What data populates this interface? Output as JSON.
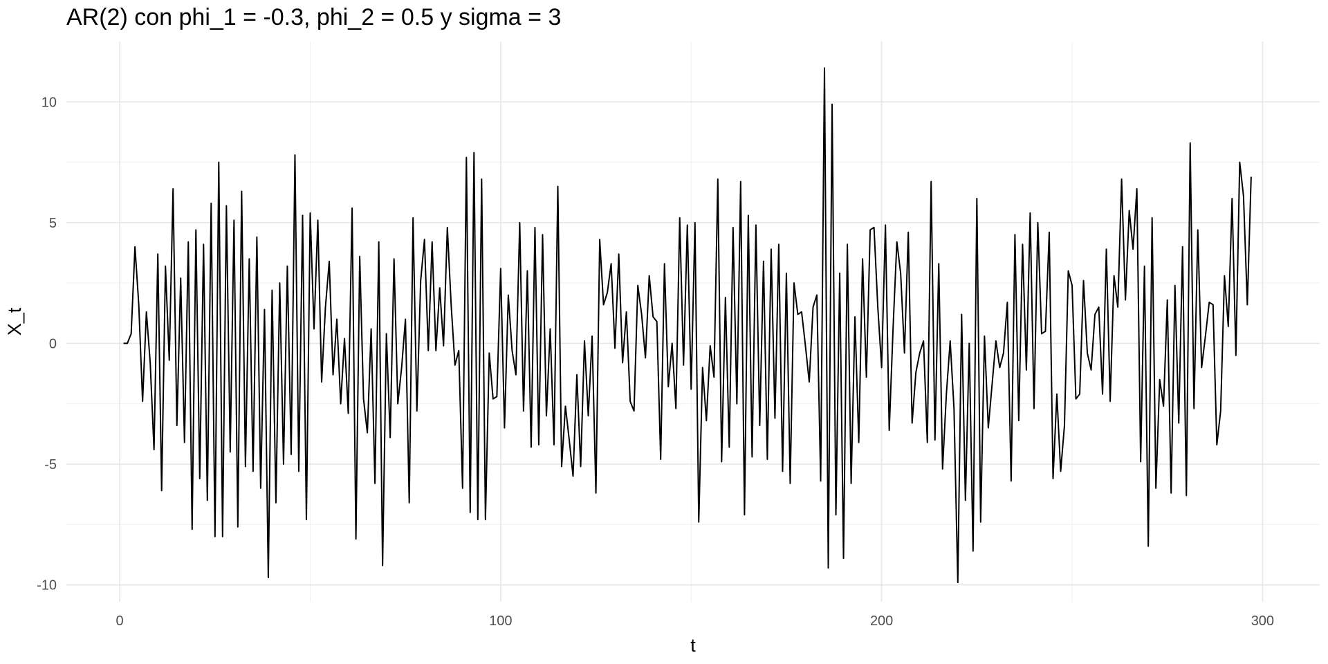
{
  "chart_data": {
    "type": "line",
    "title": "AR(2) con phi_1 = -0.3, phi_2 = 0.5 y sigma = 3",
    "xlabel": "t",
    "ylabel": "X_t",
    "xlim": [
      -14,
      315
    ],
    "ylim": [
      -10.7,
      12.5
    ],
    "x_ticks": [
      0,
      100,
      200,
      300
    ],
    "x_tick_labels": [
      "0",
      "100",
      "200",
      "300"
    ],
    "y_ticks": [
      -10,
      -5,
      0,
      5,
      10
    ],
    "y_tick_labels": [
      "-10",
      "-5",
      "0",
      "5",
      "10"
    ],
    "grid": true,
    "line_color": "#000000",
    "series": [
      {
        "x_start": 1,
        "values": [
          0,
          0,
          0.4,
          4,
          1.6,
          -2.4,
          1.3,
          -0.8,
          -4.4,
          3.7,
          -6.1,
          3.2,
          -0.7,
          6.4,
          -3.4,
          2.7,
          -4.1,
          4.2,
          -7.7,
          4.7,
          -5.6,
          4.1,
          -6.5,
          5.8,
          -8.0,
          7.5,
          -8.0,
          5.7,
          -4.5,
          5.1,
          -7.6,
          6.3,
          -5.1,
          3.5,
          -5.3,
          4.4,
          -6.0,
          1.4,
          -9.7,
          2.2,
          -6.6,
          2.5,
          -5.0,
          3.2,
          -4.6,
          7.8,
          -5.3,
          5.3,
          -7.3,
          5.4,
          0.6,
          5.1,
          -1.6,
          1.5,
          3.4,
          -1.3,
          1.0,
          -2.5,
          0.2,
          -2.9,
          5.6,
          -8.1,
          3.6,
          -2.3,
          -3.7,
          0.6,
          -5.8,
          4.2,
          -9.2,
          0.4,
          -3.9,
          3.5,
          -2.5,
          -1.0,
          1.0,
          -6.6,
          5.2,
          -2.8,
          2.6,
          4.3,
          -0.3,
          4.2,
          -0.3,
          2.3,
          -0.1,
          4.8,
          1.6,
          -0.9,
          -0.3,
          -6.0,
          7.7,
          -7.0,
          7.9,
          -7.3,
          6.8,
          -7.3,
          -0.4,
          -2.3,
          -2.2,
          3.1,
          -3.5,
          2.0,
          -0.3,
          -1.3,
          5.0,
          -2.8,
          3.0,
          -4.3,
          4.8,
          -4.2,
          4.5,
          -3.0,
          0.6,
          -4.2,
          6.5,
          -5.1,
          -2.6,
          -4.0,
          -5.5,
          -1.3,
          -5.1,
          0.1,
          -3.0,
          0.3,
          -6.2,
          4.3,
          1.6,
          2.1,
          3.3,
          -0.2,
          3.7,
          -0.8,
          1.3,
          -2.4,
          -2.8,
          2.4,
          1.2,
          -0.6,
          2.8,
          1.1,
          0.9,
          -4.8,
          3.3,
          -1.8,
          0.0,
          -2.7,
          5.2,
          -0.9,
          4.9,
          -1.9,
          5.0,
          -7.4,
          -1.0,
          -3.2,
          -0.1,
          -1.4,
          6.8,
          -4.9,
          1.9,
          -4.3,
          4.8,
          -2.5,
          6.7,
          -7.1,
          5.3,
          -4.7,
          4.9,
          -3.4,
          3.4,
          -4.8,
          3.9,
          -3.1,
          4.1,
          -5.3,
          2.9,
          -5.8,
          2.5,
          1.2,
          1.3,
          -0.1,
          -1.6,
          1.5,
          2.0,
          -5.7,
          11.4,
          -9.3,
          9.9,
          -7.1,
          2.9,
          -8.9,
          4.1,
          -5.8,
          1.1,
          -4.1,
          3.5,
          -1.4,
          4.7,
          4.8,
          1.5,
          -1.0,
          4.9,
          -3.6,
          0.6,
          4.2,
          2.9,
          -0.4,
          4.6,
          -3.3,
          -1.2,
          -0.4,
          0.1,
          -4.1,
          6.7,
          -4.0,
          3.3,
          -5.2,
          -2.1,
          0.1,
          -2.7,
          -9.9,
          1.2,
          -6.5,
          0.0,
          -8.6,
          6.0,
          -7.4,
          0.3,
          -3.5,
          -1.7,
          0.1,
          -1.0,
          -0.4,
          1.7,
          -5.7,
          4.5,
          -3.2,
          4.1,
          -1.1,
          5.4,
          -2.7,
          5.0,
          0.4,
          0.5,
          4.6,
          -5.6,
          -2.1,
          -5.3,
          -3.4,
          3.0,
          2.4,
          -2.3,
          -2.1,
          2.6,
          -0.4,
          -1.1,
          1.2,
          1.5,
          -2.1,
          3.9,
          -2.4,
          2.8,
          1.5,
          6.8,
          1.8,
          5.5,
          3.9,
          6.4,
          -4.9,
          3.2,
          -8.4,
          5.2,
          -6.0,
          -1.5,
          -2.6,
          1.8,
          -6.2,
          2.4,
          -3.3,
          4.0,
          -6.3,
          8.3,
          -2.7,
          4.7,
          -1.0,
          0.3,
          1.7,
          1.6,
          -4.2,
          -2.8,
          2.8,
          0.7,
          6.0,
          -0.5,
          7.5,
          6.1,
          1.6,
          6.9
        ]
      }
    ]
  }
}
